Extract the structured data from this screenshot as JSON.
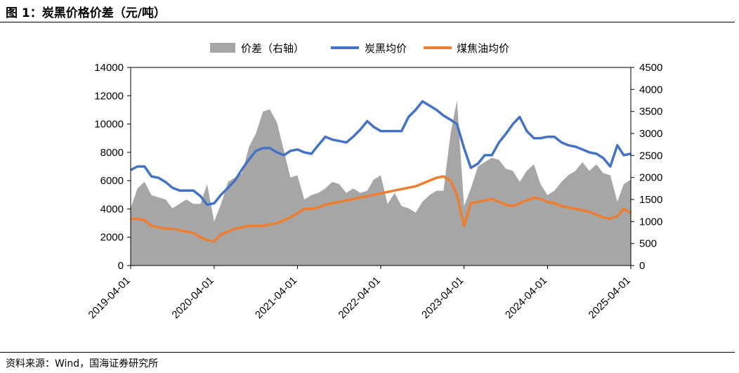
{
  "figure": {
    "title": "图 1：炭黑价格价差（元/吨）",
    "source": "资料来源：Wind，国海证券研究所"
  },
  "chart_data": {
    "type": "area+line",
    "legend_position": "top-center",
    "grid": false,
    "y_left": {
      "lim": [
        0,
        14000
      ],
      "ticks": [
        0,
        2000,
        4000,
        6000,
        8000,
        10000,
        12000,
        14000
      ]
    },
    "y_right": {
      "lim": [
        0,
        4500
      ],
      "ticks": [
        0,
        500,
        1000,
        1500,
        2000,
        2500,
        3000,
        3500,
        4000,
        4500
      ]
    },
    "x_ticks": [
      "2019-04-01",
      "2020-04-01",
      "2021-04-01",
      "2022-04-01",
      "2023-04-01",
      "2024-04-01",
      "2025-04-01"
    ],
    "series": [
      {
        "name": "价差（右轴）",
        "type": "area",
        "axis": "right",
        "color": "#a6a6a6",
        "x": [
          "2019-04",
          "2019-05",
          "2019-06",
          "2019-07",
          "2019-08",
          "2019-09",
          "2019-10",
          "2019-11",
          "2019-12",
          "2020-01",
          "2020-02",
          "2020-03",
          "2020-04",
          "2020-05",
          "2020-06",
          "2020-07",
          "2020-08",
          "2020-09",
          "2020-10",
          "2020-11",
          "2020-12",
          "2021-01",
          "2021-02",
          "2021-03",
          "2021-04",
          "2021-05",
          "2021-06",
          "2021-07",
          "2021-08",
          "2021-09",
          "2021-10",
          "2021-11",
          "2021-12",
          "2022-01",
          "2022-02",
          "2022-03",
          "2022-04",
          "2022-05",
          "2022-06",
          "2022-07",
          "2022-08",
          "2022-09",
          "2022-10",
          "2022-11",
          "2022-12",
          "2023-01",
          "2023-02",
          "2023-03",
          "2023-04",
          "2023-05",
          "2023-06",
          "2023-07",
          "2023-08",
          "2023-09",
          "2023-10",
          "2023-11",
          "2023-12",
          "2024-01",
          "2024-02",
          "2024-03",
          "2024-04",
          "2024-05",
          "2024-06",
          "2024-07",
          "2024-08",
          "2024-09",
          "2024-10",
          "2024-11",
          "2024-12",
          "2025-01",
          "2025-02",
          "2025-03",
          "2025-04"
        ],
        "y": [
          1300,
          1750,
          1900,
          1600,
          1550,
          1500,
          1300,
          1400,
          1500,
          1400,
          1400,
          1850,
          1000,
          1400,
          1900,
          2000,
          2100,
          2700,
          3000,
          3500,
          3550,
          3250,
          2600,
          2000,
          2050,
          1500,
          1600,
          1650,
          1750,
          1900,
          1850,
          1650,
          1750,
          1650,
          1700,
          1950,
          2050,
          1400,
          1650,
          1350,
          1300,
          1200,
          1450,
          1600,
          1700,
          1700,
          3000,
          3750,
          1350,
          1750,
          2250,
          2350,
          2450,
          2400,
          2200,
          2150,
          1900,
          2150,
          2300,
          1850,
          1600,
          1700,
          1900,
          2050,
          2150,
          2350,
          2150,
          2300,
          2100,
          2050,
          1450,
          1850,
          1950
        ]
      },
      {
        "name": "炭黑均价",
        "type": "line",
        "axis": "left",
        "color": "#4472c4",
        "x": [
          "2019-04",
          "2019-05",
          "2019-06",
          "2019-07",
          "2019-08",
          "2019-09",
          "2019-10",
          "2019-11",
          "2019-12",
          "2020-01",
          "2020-02",
          "2020-03",
          "2020-04",
          "2020-05",
          "2020-06",
          "2020-07",
          "2020-08",
          "2020-09",
          "2020-10",
          "2020-11",
          "2020-12",
          "2021-01",
          "2021-02",
          "2021-03",
          "2021-04",
          "2021-05",
          "2021-06",
          "2021-07",
          "2021-08",
          "2021-09",
          "2021-10",
          "2021-11",
          "2021-12",
          "2022-01",
          "2022-02",
          "2022-03",
          "2022-04",
          "2022-05",
          "2022-06",
          "2022-07",
          "2022-08",
          "2022-09",
          "2022-10",
          "2022-11",
          "2022-12",
          "2023-01",
          "2023-02",
          "2023-03",
          "2023-04",
          "2023-05",
          "2023-06",
          "2023-07",
          "2023-08",
          "2023-09",
          "2023-10",
          "2023-11",
          "2023-12",
          "2024-01",
          "2024-02",
          "2024-03",
          "2024-04",
          "2024-05",
          "2024-06",
          "2024-07",
          "2024-08",
          "2024-09",
          "2024-10",
          "2024-11",
          "2024-12",
          "2025-01",
          "2025-02",
          "2025-03",
          "2025-04"
        ],
        "y": [
          6750,
          7000,
          7000,
          6300,
          6200,
          5900,
          5500,
          5300,
          5300,
          5300,
          4900,
          4300,
          4400,
          5000,
          5500,
          6000,
          6800,
          7500,
          8100,
          8300,
          8300,
          8000,
          7800,
          8100,
          8200,
          8000,
          7900,
          8500,
          9100,
          8900,
          8800,
          8700,
          9100,
          9600,
          10200,
          9800,
          9500,
          9500,
          9500,
          9500,
          10500,
          11000,
          11600,
          11300,
          11000,
          10600,
          10300,
          10000,
          8300,
          6900,
          7200,
          7800,
          7800,
          8700,
          9300,
          10000,
          10500,
          9500,
          9000,
          9000,
          9100,
          9100,
          8700,
          8500,
          8400,
          8200,
          8000,
          7900,
          7600,
          7000,
          8500,
          7800,
          7900
        ]
      },
      {
        "name": "煤焦油均价",
        "type": "line",
        "axis": "left",
        "color": "#ed7d31",
        "x": [
          "2019-04",
          "2019-05",
          "2019-06",
          "2019-07",
          "2019-08",
          "2019-09",
          "2019-10",
          "2019-11",
          "2019-12",
          "2020-01",
          "2020-02",
          "2020-03",
          "2020-04",
          "2020-05",
          "2020-06",
          "2020-07",
          "2020-08",
          "2020-09",
          "2020-10",
          "2020-11",
          "2020-12",
          "2021-01",
          "2021-02",
          "2021-03",
          "2021-04",
          "2021-05",
          "2021-06",
          "2021-07",
          "2021-08",
          "2021-09",
          "2021-10",
          "2021-11",
          "2021-12",
          "2022-01",
          "2022-02",
          "2022-03",
          "2022-04",
          "2022-05",
          "2022-06",
          "2022-07",
          "2022-08",
          "2022-09",
          "2022-10",
          "2022-11",
          "2022-12",
          "2023-01",
          "2023-02",
          "2023-03",
          "2023-04",
          "2023-05",
          "2023-06",
          "2023-07",
          "2023-08",
          "2023-09",
          "2023-10",
          "2023-11",
          "2023-12",
          "2024-01",
          "2024-02",
          "2024-03",
          "2024-04",
          "2024-05",
          "2024-06",
          "2024-07",
          "2024-08",
          "2024-09",
          "2024-10",
          "2024-11",
          "2024-12",
          "2025-01",
          "2025-02",
          "2025-03",
          "2025-04"
        ],
        "y": [
          3300,
          3300,
          3200,
          2800,
          2700,
          2600,
          2600,
          2500,
          2400,
          2300,
          2000,
          1800,
          1700,
          2200,
          2400,
          2600,
          2700,
          2800,
          2800,
          2800,
          2900,
          3000,
          3200,
          3400,
          3700,
          4000,
          4000,
          4100,
          4300,
          4400,
          4500,
          4600,
          4700,
          4800,
          4900,
          5000,
          5100,
          5200,
          5300,
          5400,
          5500,
          5600,
          5800,
          6000,
          6200,
          6300,
          6000,
          5000,
          2800,
          4400,
          4500,
          4600,
          4700,
          4500,
          4300,
          4200,
          4400,
          4600,
          4800,
          4700,
          4500,
          4400,
          4200,
          4100,
          4000,
          3900,
          3800,
          3600,
          3400,
          3300,
          3500,
          4000,
          3700
        ]
      }
    ]
  }
}
